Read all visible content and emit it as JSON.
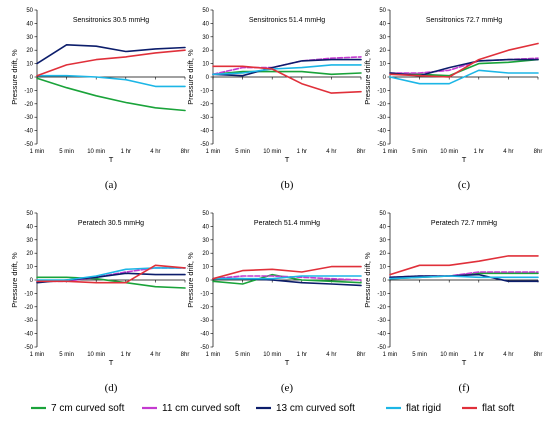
{
  "chart_data": [
    {
      "type": "line",
      "panel_label": "(a)",
      "title": "Sensitronics  30.5 mmHg",
      "xlabel": "T",
      "ylabel": "Pressure drift, %",
      "ylim": [
        -50,
        50
      ],
      "categories": [
        "1 min",
        "5 min",
        "10 min",
        "1 hr",
        "4 hr",
        "8hr"
      ],
      "series": [
        {
          "name": "7 cm curved soft",
          "values": [
            -1,
            -8,
            -14,
            -19,
            -23,
            -25
          ]
        },
        {
          "name": "11 cm curved soft",
          "values": [
            null,
            null,
            null,
            null,
            null,
            null
          ]
        },
        {
          "name": "13 cm curved soft",
          "values": [
            10,
            24,
            23,
            19,
            21,
            22
          ]
        },
        {
          "name": "flat rigid",
          "values": [
            1,
            1,
            0,
            -2,
            -7,
            -7
          ]
        },
        {
          "name": "flat soft",
          "values": [
            1,
            9,
            13,
            15,
            18,
            20
          ]
        }
      ]
    },
    {
      "type": "line",
      "panel_label": "(b)",
      "title": "Sensitronics  51.4 mmHg",
      "xlabel": "T",
      "ylabel": "Pressure drift, %",
      "ylim": [
        -50,
        50
      ],
      "categories": [
        "1 min",
        "5 min",
        "10 min",
        "1 hr",
        "4 hr",
        "8hr"
      ],
      "series": [
        {
          "name": "7 cm curved soft",
          "values": [
            2,
            4,
            4,
            4,
            2,
            3
          ]
        },
        {
          "name": "11 cm curved soft",
          "values": [
            2,
            7,
            7,
            12,
            14,
            15
          ]
        },
        {
          "name": "13 cm curved soft",
          "values": [
            2,
            1,
            7,
            12,
            13,
            13
          ]
        },
        {
          "name": "flat rigid",
          "values": [
            2,
            3,
            6,
            7,
            9,
            9
          ]
        },
        {
          "name": "flat soft",
          "values": [
            8,
            8,
            6,
            -5,
            -12,
            -11
          ]
        }
      ]
    },
    {
      "type": "line",
      "panel_label": "(c)",
      "title": "Sensitronics  72.7 mmHg",
      "xlabel": "T",
      "ylabel": "Pressure drift, %",
      "ylim": [
        -50,
        50
      ],
      "categories": [
        "1 min",
        "5 min",
        "10 min",
        "1 hr",
        "4 hr",
        "8hr"
      ],
      "series": [
        {
          "name": "7 cm curved soft",
          "values": [
            3,
            2,
            1,
            10,
            11,
            13
          ]
        },
        {
          "name": "11 cm curved soft",
          "values": [
            3,
            3,
            5,
            12,
            13,
            14
          ]
        },
        {
          "name": "13 cm curved soft",
          "values": [
            3,
            1,
            7,
            12,
            13,
            13
          ]
        },
        {
          "name": "flat rigid",
          "values": [
            0,
            -5,
            -5,
            5,
            3,
            3
          ]
        },
        {
          "name": "flat soft",
          "values": [
            2,
            1,
            0,
            13,
            20,
            25
          ]
        }
      ]
    },
    {
      "type": "line",
      "panel_label": "(d)",
      "title": "Peratech  30.5 mmHg",
      "xlabel": "T",
      "ylabel": "Pressure drift, %",
      "ylim": [
        -50,
        50
      ],
      "categories": [
        "1 min",
        "5 min",
        "10 min",
        "1 hr",
        "4 hr",
        "8hr"
      ],
      "series": [
        {
          "name": "7 cm curved soft",
          "values": [
            2,
            2,
            1,
            -2,
            -5,
            -6
          ]
        },
        {
          "name": "11 cm curved soft",
          "values": [
            -1,
            -1,
            2,
            6,
            9,
            9
          ]
        },
        {
          "name": "13 cm curved soft",
          "values": [
            -2,
            0,
            2,
            5,
            4,
            4
          ]
        },
        {
          "name": "flat rigid",
          "values": [
            0,
            0,
            3,
            8,
            9,
            9
          ]
        },
        {
          "name": "flat soft",
          "values": [
            -1,
            -1,
            -2,
            -2,
            11,
            9
          ]
        }
      ]
    },
    {
      "type": "line",
      "panel_label": "(e)",
      "title": "Peratech  51.4 mmHg",
      "xlabel": "T",
      "ylabel": "Pressure drift, %",
      "ylim": [
        -50,
        50
      ],
      "categories": [
        "1 min",
        "5 min",
        "10 min",
        "1 hr",
        "4 hr",
        "8hr"
      ],
      "series": [
        {
          "name": "7 cm curved soft",
          "values": [
            -1,
            -3,
            4,
            0,
            -1,
            -2
          ]
        },
        {
          "name": "11 cm curved soft",
          "values": [
            1,
            3,
            3,
            2,
            1,
            0
          ]
        },
        {
          "name": "13 cm curved soft",
          "values": [
            1,
            1,
            0,
            -2,
            -3,
            -4
          ]
        },
        {
          "name": "flat rigid",
          "values": [
            1,
            1,
            1,
            3,
            3,
            3
          ]
        },
        {
          "name": "flat soft",
          "values": [
            1,
            7,
            8,
            6,
            10,
            10
          ]
        }
      ]
    },
    {
      "type": "line",
      "panel_label": "(f)",
      "title": "Peratech  72.7 mmHg",
      "xlabel": "T",
      "ylabel": "Pressure drift, %",
      "ylim": [
        -50,
        50
      ],
      "categories": [
        "1 min",
        "5 min",
        "10 min",
        "1 hr",
        "4 hr",
        "8hr"
      ],
      "series": [
        {
          "name": "7 cm curved soft",
          "values": [
            1,
            2,
            3,
            5,
            5,
            5
          ]
        },
        {
          "name": "11 cm curved soft",
          "values": [
            2,
            3,
            3,
            6,
            6,
            6
          ]
        },
        {
          "name": "13 cm curved soft",
          "values": [
            2,
            3,
            3,
            4,
            -1,
            -1
          ]
        },
        {
          "name": "flat rigid",
          "values": [
            1,
            2,
            3,
            2,
            2,
            2
          ]
        },
        {
          "name": "flat soft",
          "values": [
            4,
            11,
            11,
            14,
            18,
            18
          ]
        }
      ]
    }
  ],
  "legend": {
    "placement": "bottom",
    "items": [
      {
        "label": "7 cm curved soft",
        "color": "#1aa33a"
      },
      {
        "label": "11 cm curved soft",
        "color": "#c43ad0"
      },
      {
        "label": "13 cm curved soft",
        "color": "#0c1d6b"
      },
      {
        "label": "flat rigid",
        "color": "#1cb6e6"
      },
      {
        "label": "flat soft",
        "color": "#e0303a"
      }
    ]
  },
  "colors": {
    "7 cm curved soft": "#1aa33a",
    "11 cm curved soft": "#c43ad0",
    "13 cm curved soft": "#0c1d6b",
    "flat rigid": "#1cb6e6",
    "flat soft": "#e0303a"
  }
}
